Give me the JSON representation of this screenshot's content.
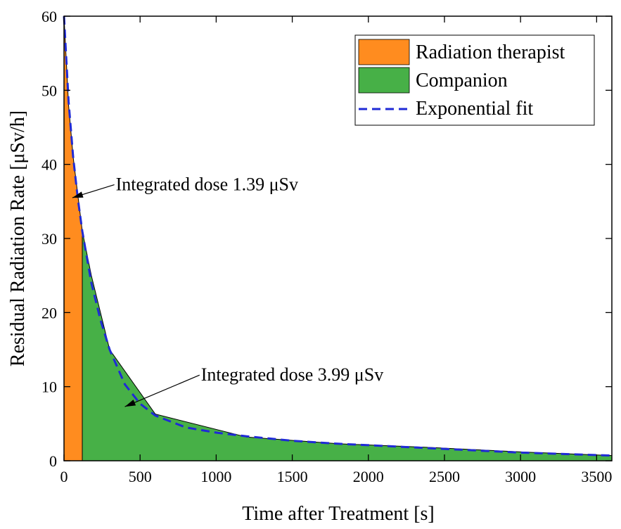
{
  "chart_data": {
    "type": "area",
    "xlabel": "Time after Treatment [s]",
    "ylabel": "Residual Radiation Rate [μSv/h]",
    "xlim": [
      0,
      3600
    ],
    "ylim": [
      0,
      60
    ],
    "xticks": [
      0,
      500,
      1000,
      1500,
      2000,
      2500,
      3000,
      3500
    ],
    "yticks": [
      0,
      10,
      20,
      30,
      40,
      50,
      60
    ],
    "grid": false,
    "legend_position": "top-right",
    "series": [
      {
        "name": "Radiation therapist",
        "kind": "filled-area",
        "color": "#ff8c1f",
        "x": [
          0,
          30,
          60,
          90,
          120
        ],
        "y": [
          60,
          48,
          41,
          36,
          31
        ]
      },
      {
        "name": "Companion",
        "kind": "filled-area",
        "color": "#47b047",
        "x": [
          120,
          180,
          300,
          600,
          1200,
          1800,
          2400,
          3000,
          3600
        ],
        "y": [
          31,
          25,
          15,
          6.3,
          3.2,
          2.3,
          1.8,
          1.2,
          0.7
        ]
      },
      {
        "name": "Exponential fit",
        "kind": "dashed-line",
        "color": "#1f2ad6",
        "x": [
          0,
          30,
          60,
          90,
          120,
          180,
          240,
          300,
          400,
          500,
          600,
          800,
          1000,
          1200,
          1500,
          1800,
          2100,
          2400,
          2700,
          3000,
          3300,
          3600
        ],
        "y": [
          60,
          48.5,
          41,
          35.5,
          31,
          24,
          19,
          15,
          10.3,
          7.7,
          6.1,
          4.5,
          3.8,
          3.3,
          2.7,
          2.3,
          2.0,
          1.7,
          1.4,
          1.1,
          0.9,
          0.7
        ]
      }
    ],
    "annotations": [
      {
        "text": "Integrated dose 1.39 μSv",
        "x": 340,
        "y": 36.5,
        "arrow_to": [
          55,
          35.5
        ]
      },
      {
        "text": "Integrated dose 3.99 μSv",
        "x": 900,
        "y": 10.8,
        "arrow_to": [
          400,
          7.3
        ]
      }
    ]
  }
}
